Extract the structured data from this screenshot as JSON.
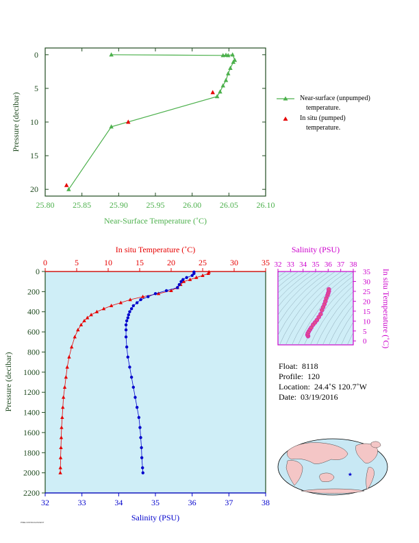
{
  "colors": {
    "green": "#4cb04c",
    "red": "#e60000",
    "blue": "#0000cc",
    "magenta": "#cc00cc",
    "panel_bg": "#cfeef7",
    "axis_dark": "#1f4a1f"
  },
  "top_chart": {
    "type": "line",
    "xlabel": "Near-Surface Temperature (˚C)",
    "ylabel": "Pressure (decibar)",
    "xlim": [
      25.8,
      26.1
    ],
    "ylim": [
      21,
      -1
    ],
    "xticks": [
      "25.80",
      "25.85",
      "25.90",
      "25.95",
      "26.00",
      "26.05",
      "26.10"
    ],
    "yticks": [
      "0",
      "5",
      "10",
      "15",
      "20"
    ],
    "series": [
      {
        "name": "Near-surface (unpumped) temperature.",
        "x": [
          25.89,
          26.042,
          26.046,
          26.049,
          26.055,
          26.058,
          26.056,
          26.052,
          26.049,
          26.046,
          26.042,
          26.038,
          26.034,
          25.89,
          25.832
        ],
        "y": [
          0.0,
          0.1,
          0.05,
          0.1,
          0.0,
          0.8,
          1.1,
          2.0,
          2.8,
          3.8,
          4.6,
          5.5,
          6.2,
          10.7,
          20.0
        ]
      },
      {
        "name": "In situ (pumped) temperature.",
        "x": [
          26.028,
          25.913,
          25.829
        ],
        "y": [
          5.6,
          10.0,
          19.4
        ]
      }
    ],
    "legend": [
      "Near-surface (unpumped)",
      "temperature.",
      "In situ (pumped)",
      "temperature."
    ]
  },
  "profile_chart": {
    "type": "line",
    "temp_axis_label": "In situ Temperature (˚C)",
    "sal_axis_label": "Salinity (PSU)",
    "ylabel": "Pressure (decibar)",
    "temp_lim": [
      0,
      35
    ],
    "sal_lim": [
      32,
      38
    ],
    "ylim": [
      2200,
      0
    ],
    "temp_ticks": [
      "0",
      "5",
      "10",
      "15",
      "20",
      "25",
      "30",
      "35"
    ],
    "sal_ticks": [
      "32",
      "33",
      "34",
      "35",
      "36",
      "37",
      "38"
    ],
    "pressure_ticks": [
      "0",
      "200",
      "400",
      "600",
      "800",
      "1000",
      "1200",
      "1400",
      "1600",
      "1800",
      "2000",
      "2200"
    ],
    "temperature": {
      "p": [
        5,
        20,
        40,
        60,
        80,
        100,
        130,
        160,
        190,
        220,
        250,
        280,
        310,
        340,
        370,
        400,
        430,
        460,
        490,
        530,
        580,
        650,
        750,
        850,
        950,
        1050,
        1150,
        1250,
        1350,
        1450,
        1550,
        1650,
        1750,
        1850,
        1950,
        2000
      ],
      "v": [
        26.0,
        25.9,
        25.0,
        24.0,
        23.0,
        22.0,
        21.5,
        21.0,
        20.0,
        18.0,
        15.5,
        13.5,
        12.0,
        10.5,
        9.3,
        8.2,
        7.3,
        6.7,
        6.2,
        5.7,
        5.2,
        4.7,
        4.2,
        3.8,
        3.5,
        3.3,
        3.1,
        2.9,
        2.8,
        2.7,
        2.6,
        2.55,
        2.5,
        2.45,
        2.42,
        2.4
      ]
    },
    "salinity": {
      "p": [
        5,
        20,
        40,
        60,
        80,
        100,
        130,
        160,
        190,
        220,
        250,
        280,
        310,
        340,
        370,
        400,
        430,
        460,
        490,
        530,
        580,
        650,
        750,
        850,
        950,
        1050,
        1150,
        1250,
        1350,
        1450,
        1550,
        1650,
        1750,
        1850,
        1950,
        2000
      ],
      "v": [
        36.05,
        36.05,
        36.0,
        35.85,
        35.75,
        35.7,
        35.65,
        35.6,
        35.3,
        35.0,
        34.8,
        34.6,
        34.5,
        34.4,
        34.35,
        34.3,
        34.27,
        34.25,
        34.22,
        34.2,
        34.2,
        34.2,
        34.22,
        34.25,
        34.3,
        34.35,
        34.4,
        34.45,
        34.5,
        34.55,
        34.58,
        34.6,
        34.62,
        34.63,
        34.65,
        34.66
      ]
    }
  },
  "ts_chart": {
    "type": "scatter",
    "xlabel": "Salinity (PSU)",
    "ylabel": "In situ Temperature (˚C)",
    "xlim": [
      32,
      38
    ],
    "ylim": [
      -2,
      35
    ],
    "xticks": [
      "32",
      "33",
      "34",
      "35",
      "36",
      "37",
      "38"
    ],
    "yticks": [
      "0",
      "5",
      "10",
      "15",
      "20",
      "25",
      "30",
      "35"
    ],
    "points": {
      "s": [
        34.4,
        34.35,
        34.38,
        34.45,
        34.55,
        34.65,
        34.8,
        34.95,
        35.1,
        35.25,
        35.4,
        35.5,
        35.6,
        35.7,
        35.78,
        35.85,
        35.95,
        36.0,
        36.05,
        36.05
      ],
      "t": [
        2.4,
        3.0,
        3.8,
        4.7,
        5.7,
        6.7,
        8.2,
        9.3,
        10.5,
        12.0,
        13.5,
        15.5,
        17.0,
        18.5,
        20.0,
        21.5,
        23.0,
        24.0,
        25.0,
        26.0
      ]
    }
  },
  "float_info": {
    "float_label": "Float:",
    "float_value": "8118",
    "profile_label": "Profile:",
    "profile_value": "120",
    "location_label": "Location:",
    "location_value": "24.4˚S  120.7˚W",
    "date_label": "Date:",
    "date_value": "03/19/2016"
  },
  "map": {
    "marker": "★",
    "float_lon": -120.7,
    "float_lat": -24.4
  },
  "footer": "PMEL/UW/NOAA/SOEST"
}
